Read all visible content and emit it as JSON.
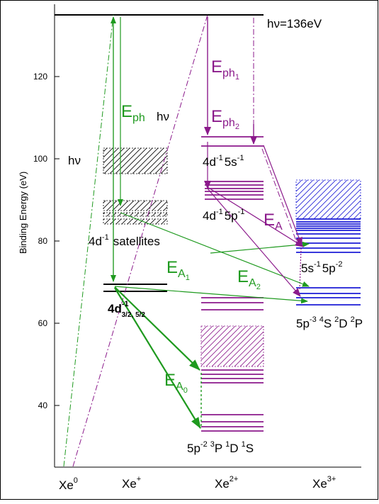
{
  "colors": {
    "black": "#000000",
    "green": "#1f9a1f",
    "purple": "#8b1a8b",
    "blue": "#1b1bd6"
  },
  "axes": {
    "ylabel": "Binding Energy (eV)",
    "yticks": [
      "120",
      "100",
      "80",
      "60",
      "40"
    ],
    "xlabels": {
      "xe0_base": "Xe",
      "xe0_sup": "0",
      "xe1_base": "Xe",
      "xe1_sup": "+",
      "xe2_base": "Xe",
      "xe2_sup": "2+",
      "xe3_base": "Xe",
      "xe3_sup": "3+"
    }
  },
  "labels": {
    "hv_top": "hν=136eV",
    "hv_left": "hν",
    "hv_mid": "hν",
    "eph_base": "E",
    "eph_sub": "ph",
    "eph1_base": "E",
    "eph1_sub": "ph",
    "eph1_subsub": "1",
    "eph2_base": "E",
    "eph2_sub": "ph",
    "eph2_subsub": "2",
    "ea_base": "E",
    "ea_sub": "A",
    "ea1_base": "E",
    "ea1_sub": "A",
    "ea1_subsub": "1",
    "ea2_base": "E",
    "ea2_sub": "A",
    "ea2_subsub": "2",
    "ea0_base": "E",
    "ea0_sub": "A",
    "ea0_subsub": "0",
    "sat_a": "4d",
    "sat_b": "-1",
    "sat_c": "satellites",
    "state_4d5s_a": "4d",
    "state_4d5s_b": "-1",
    "state_4d5s_c": "5s",
    "state_4d5s_d": "-1",
    "state_4d5p_a": "4d",
    "state_4d5p_b": "-1",
    "state_4d5p_c": "5p",
    "state_4d5p_d": "-1",
    "state_5s5p_a": "5s",
    "state_5s5p_b": "-1",
    "state_5s5p_c": "5p",
    "state_5s5p_d": "-2",
    "state_4d_a": "4d",
    "state_4d_b": "-1",
    "state_4d_c": "3/2, 5/2",
    "state_5p3_a": "5p",
    "state_5p3_b": "-3",
    "state_5p3_c": "4",
    "state_5p3_d": "S",
    "state_5p3_e": "2",
    "state_5p3_f": "D",
    "state_5p3_g": "2",
    "state_5p3_h": "P",
    "state_5p2_a": "5p",
    "state_5p2_b": "-2",
    "state_5p2_c": "3",
    "state_5p2_d": "P",
    "state_5p2_e": "1",
    "state_5p2_f": "D",
    "state_5p2_g": "1",
    "state_5p2_h": "S"
  }
}
